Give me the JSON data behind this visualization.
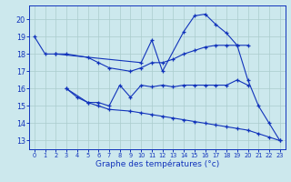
{
  "xlabel": "Graphe des températures (°c)",
  "background_color": "#cce8ed",
  "grid_color": "#aacccc",
  "line_color": "#1133bb",
  "xlim": [
    -0.5,
    23.5
  ],
  "ylim": [
    12.5,
    20.8
  ],
  "x_ticks": [
    0,
    1,
    2,
    3,
    4,
    5,
    6,
    7,
    8,
    9,
    10,
    11,
    12,
    13,
    14,
    15,
    16,
    17,
    18,
    19,
    20,
    21,
    22,
    23
  ],
  "y_ticks": [
    13,
    14,
    15,
    16,
    17,
    18,
    19,
    20
  ],
  "series": [
    {
      "x": [
        0,
        1,
        2,
        10,
        11,
        12,
        14,
        15,
        16,
        17,
        18,
        19,
        20,
        21,
        22,
        23
      ],
      "y": [
        19.0,
        18.0,
        18.0,
        17.5,
        18.8,
        17.0,
        19.3,
        20.2,
        20.3,
        19.7,
        19.2,
        18.5,
        16.5,
        15.0,
        14.0,
        13.0
      ]
    },
    {
      "x": [
        2,
        3,
        5,
        6,
        7,
        9,
        10,
        11,
        12,
        13,
        14,
        15,
        16,
        17,
        18,
        19,
        20
      ],
      "y": [
        18.0,
        18.0,
        17.8,
        17.5,
        17.2,
        17.0,
        17.2,
        17.5,
        17.5,
        17.7,
        18.0,
        18.2,
        18.4,
        18.5,
        18.5,
        18.5,
        18.5
      ]
    },
    {
      "x": [
        3,
        5,
        6,
        7,
        8,
        9,
        10,
        11,
        12,
        13,
        14,
        15,
        16,
        17,
        18,
        19,
        20
      ],
      "y": [
        16.0,
        15.2,
        15.2,
        15.0,
        16.2,
        15.5,
        16.2,
        16.1,
        16.2,
        16.1,
        16.2,
        16.2,
        16.2,
        16.2,
        16.2,
        16.5,
        16.2
      ]
    },
    {
      "x": [
        3,
        4,
        5,
        6,
        7,
        9,
        10,
        11,
        12,
        13,
        14,
        15,
        16,
        17,
        18,
        19,
        20,
        21,
        22,
        23
      ],
      "y": [
        16.0,
        15.5,
        15.2,
        15.0,
        14.8,
        14.7,
        14.6,
        14.5,
        14.4,
        14.3,
        14.2,
        14.1,
        14.0,
        13.9,
        13.8,
        13.7,
        13.6,
        13.4,
        13.2,
        13.0
      ]
    }
  ]
}
